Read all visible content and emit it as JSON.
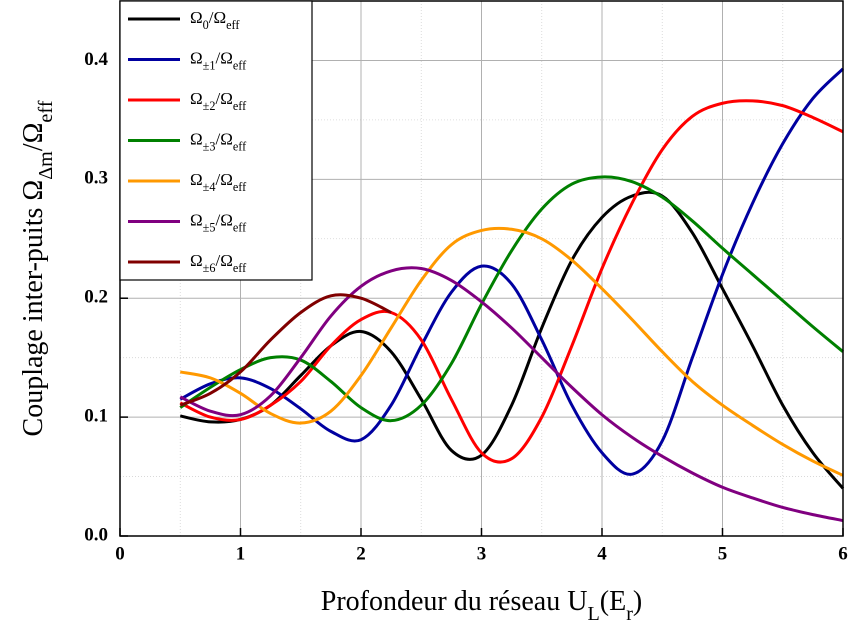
{
  "chart_data": {
    "type": "line",
    "xlabel": "Profondeur du réseau U_{L}(E_{r})",
    "ylabel": "Couplage inter-puits Ω_{Δm}/Ω_{eff}",
    "x": [
      0.5,
      0.75,
      1.0,
      1.25,
      1.5,
      1.75,
      2.0,
      2.25,
      2.5,
      2.75,
      3.0,
      3.25,
      3.5,
      3.75,
      4.0,
      4.25,
      4.5,
      4.75,
      5.0,
      5.25,
      5.5,
      5.75,
      6.0
    ],
    "series": [
      {
        "name": "Ω_{0}/Ω_{eff}",
        "color": "#000000",
        "values": [
          0.101,
          0.096,
          0.098,
          0.11,
          0.135,
          0.16,
          0.172,
          0.155,
          0.115,
          0.072,
          0.068,
          0.11,
          0.175,
          0.232,
          0.268,
          0.286,
          0.286,
          0.255,
          0.208,
          0.16,
          0.11,
          0.07,
          0.04
        ]
      },
      {
        "name": "Ω_{±1}/Ω_{eff}",
        "color": "#0000a0",
        "values": [
          0.115,
          0.128,
          0.133,
          0.124,
          0.107,
          0.088,
          0.081,
          0.11,
          0.16,
          0.205,
          0.227,
          0.212,
          0.165,
          0.11,
          0.07,
          0.052,
          0.08,
          0.15,
          0.22,
          0.28,
          0.33,
          0.368,
          0.393
        ]
      },
      {
        "name": "Ω_{±2}/Ω_{eff}",
        "color": "#ff0000",
        "values": [
          0.112,
          0.1,
          0.098,
          0.11,
          0.13,
          0.16,
          0.182,
          0.188,
          0.165,
          0.115,
          0.07,
          0.065,
          0.1,
          0.16,
          0.225,
          0.28,
          0.325,
          0.353,
          0.364,
          0.366,
          0.362,
          0.352,
          0.34
        ]
      },
      {
        "name": "Ω_{±3}/Ω_{eff}",
        "color": "#008000",
        "values": [
          0.108,
          0.125,
          0.14,
          0.15,
          0.148,
          0.13,
          0.108,
          0.097,
          0.11,
          0.145,
          0.195,
          0.24,
          0.275,
          0.296,
          0.302,
          0.298,
          0.285,
          0.265,
          0.242,
          0.22,
          0.198,
          0.176,
          0.155
        ]
      },
      {
        "name": "Ω_{±4}/Ω_{eff}",
        "color": "#ff9900",
        "values": [
          0.138,
          0.133,
          0.12,
          0.103,
          0.095,
          0.105,
          0.135,
          0.175,
          0.215,
          0.245,
          0.257,
          0.258,
          0.25,
          0.232,
          0.208,
          0.182,
          0.155,
          0.13,
          0.11,
          0.093,
          0.077,
          0.063,
          0.051
        ]
      },
      {
        "name": "Ω_{±5}/Ω_{eff}",
        "color": "#800080",
        "values": [
          0.117,
          0.105,
          0.102,
          0.118,
          0.15,
          0.185,
          0.21,
          0.223,
          0.225,
          0.215,
          0.197,
          0.175,
          0.15,
          0.125,
          0.102,
          0.083,
          0.067,
          0.053,
          0.041,
          0.032,
          0.024,
          0.018,
          0.013
        ]
      },
      {
        "name": "Ω_{±6}/Ω_{eff}",
        "color": "#800000",
        "values": [
          0.11,
          0.12,
          0.138,
          0.165,
          0.188,
          0.202,
          0.2,
          0.188,
          null,
          null,
          null,
          null,
          null,
          null,
          null,
          null,
          null,
          null,
          null,
          null,
          null,
          null,
          null
        ]
      }
    ],
    "xlim": [
      0,
      6
    ],
    "ylim": [
      0,
      0.45
    ],
    "xticks": [
      0,
      1,
      2,
      3,
      4,
      5,
      6
    ],
    "yticks": [
      {
        "value": 0,
        "label": "0.0"
      },
      0.1,
      0.2,
      0.3,
      0.4
    ],
    "xminorticks": [
      0.5,
      1.5,
      2.5,
      3.5,
      4.5,
      5.5
    ],
    "yminorticks": [
      0.05,
      0.15,
      0.25,
      0.35,
      0.45
    ],
    "grid": true,
    "legend": "upper left"
  }
}
